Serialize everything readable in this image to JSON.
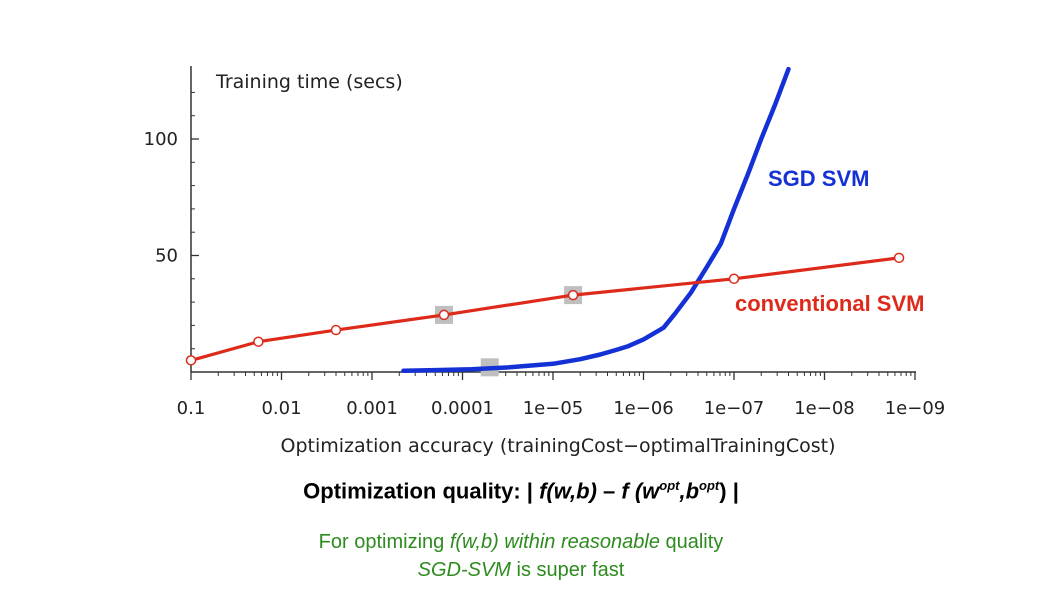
{
  "chart_data": {
    "type": "line",
    "ylabel": "Training time (secs)",
    "xlabel": "Optimization accuracy (trainingCost−optimalTrainingCost)",
    "x_scale": "log-reversed",
    "x_ticks": [
      "0.1",
      "0.01",
      "0.001",
      "0.0001",
      "1e−05",
      "1e−06",
      "1e−07",
      "1e−08",
      "1e−09"
    ],
    "x_tick_values": [
      0.1,
      0.01,
      0.001,
      0.0001,
      1e-05,
      1e-06,
      1e-07,
      1e-08,
      1e-09
    ],
    "y_ticks": [
      "50",
      "100"
    ],
    "y_tick_values": [
      50,
      100
    ],
    "xlim": [
      0.1,
      7e-10
    ],
    "ylim": [
      0,
      130
    ],
    "grid": false,
    "series": [
      {
        "name": "conventional SVM",
        "color": "#dd2a1b",
        "markers": true,
        "x": [
          0.1,
          0.018,
          0.0025,
          0.00016,
          6e-06,
          1e-07,
          1.5e-09
        ],
        "y": [
          5,
          13,
          18,
          24.5,
          33,
          40,
          49
        ]
      },
      {
        "name": "SGD SVM",
        "color": "#1431d6",
        "markers": false,
        "x": [
          0.00045,
          0.0002,
          8e-05,
          3e-05,
          1e-05,
          5e-06,
          3e-06,
          2e-06,
          1.5e-06,
          1e-06,
          6e-07,
          4.5e-07,
          3e-07,
          2e-07,
          1.4e-07,
          1e-07,
          7e-08,
          5e-08,
          3.5e-08,
          2.5e-08
        ],
        "y": [
          0.5,
          0.8,
          1.2,
          2,
          3.5,
          5.5,
          7.5,
          9.5,
          11,
          14,
          19,
          25,
          34,
          45,
          55,
          70,
          85,
          100,
          115,
          130
        ]
      }
    ],
    "grey_markers": [
      {
        "x": 0.00016,
        "y": 24.5
      },
      {
        "x": 5e-05,
        "y": 2
      },
      {
        "x": 6e-06,
        "y": 33
      }
    ]
  },
  "quality": {
    "prefix": "Optimization quality: | ",
    "f_wb": "f(w,b)",
    "dash": " – ",
    "f_opt_open": "f (w",
    "sup_opt1": "opt",
    "comma_b": ",b",
    "sup_opt2": "opt",
    "close": ") |"
  },
  "caption": {
    "line1_a": "For optimizing ",
    "line1_b": "f(w,b) within reasonable",
    "line1_c": " quality",
    "line2_a": "SGD-SVM",
    "line2_b": " is super fast"
  }
}
